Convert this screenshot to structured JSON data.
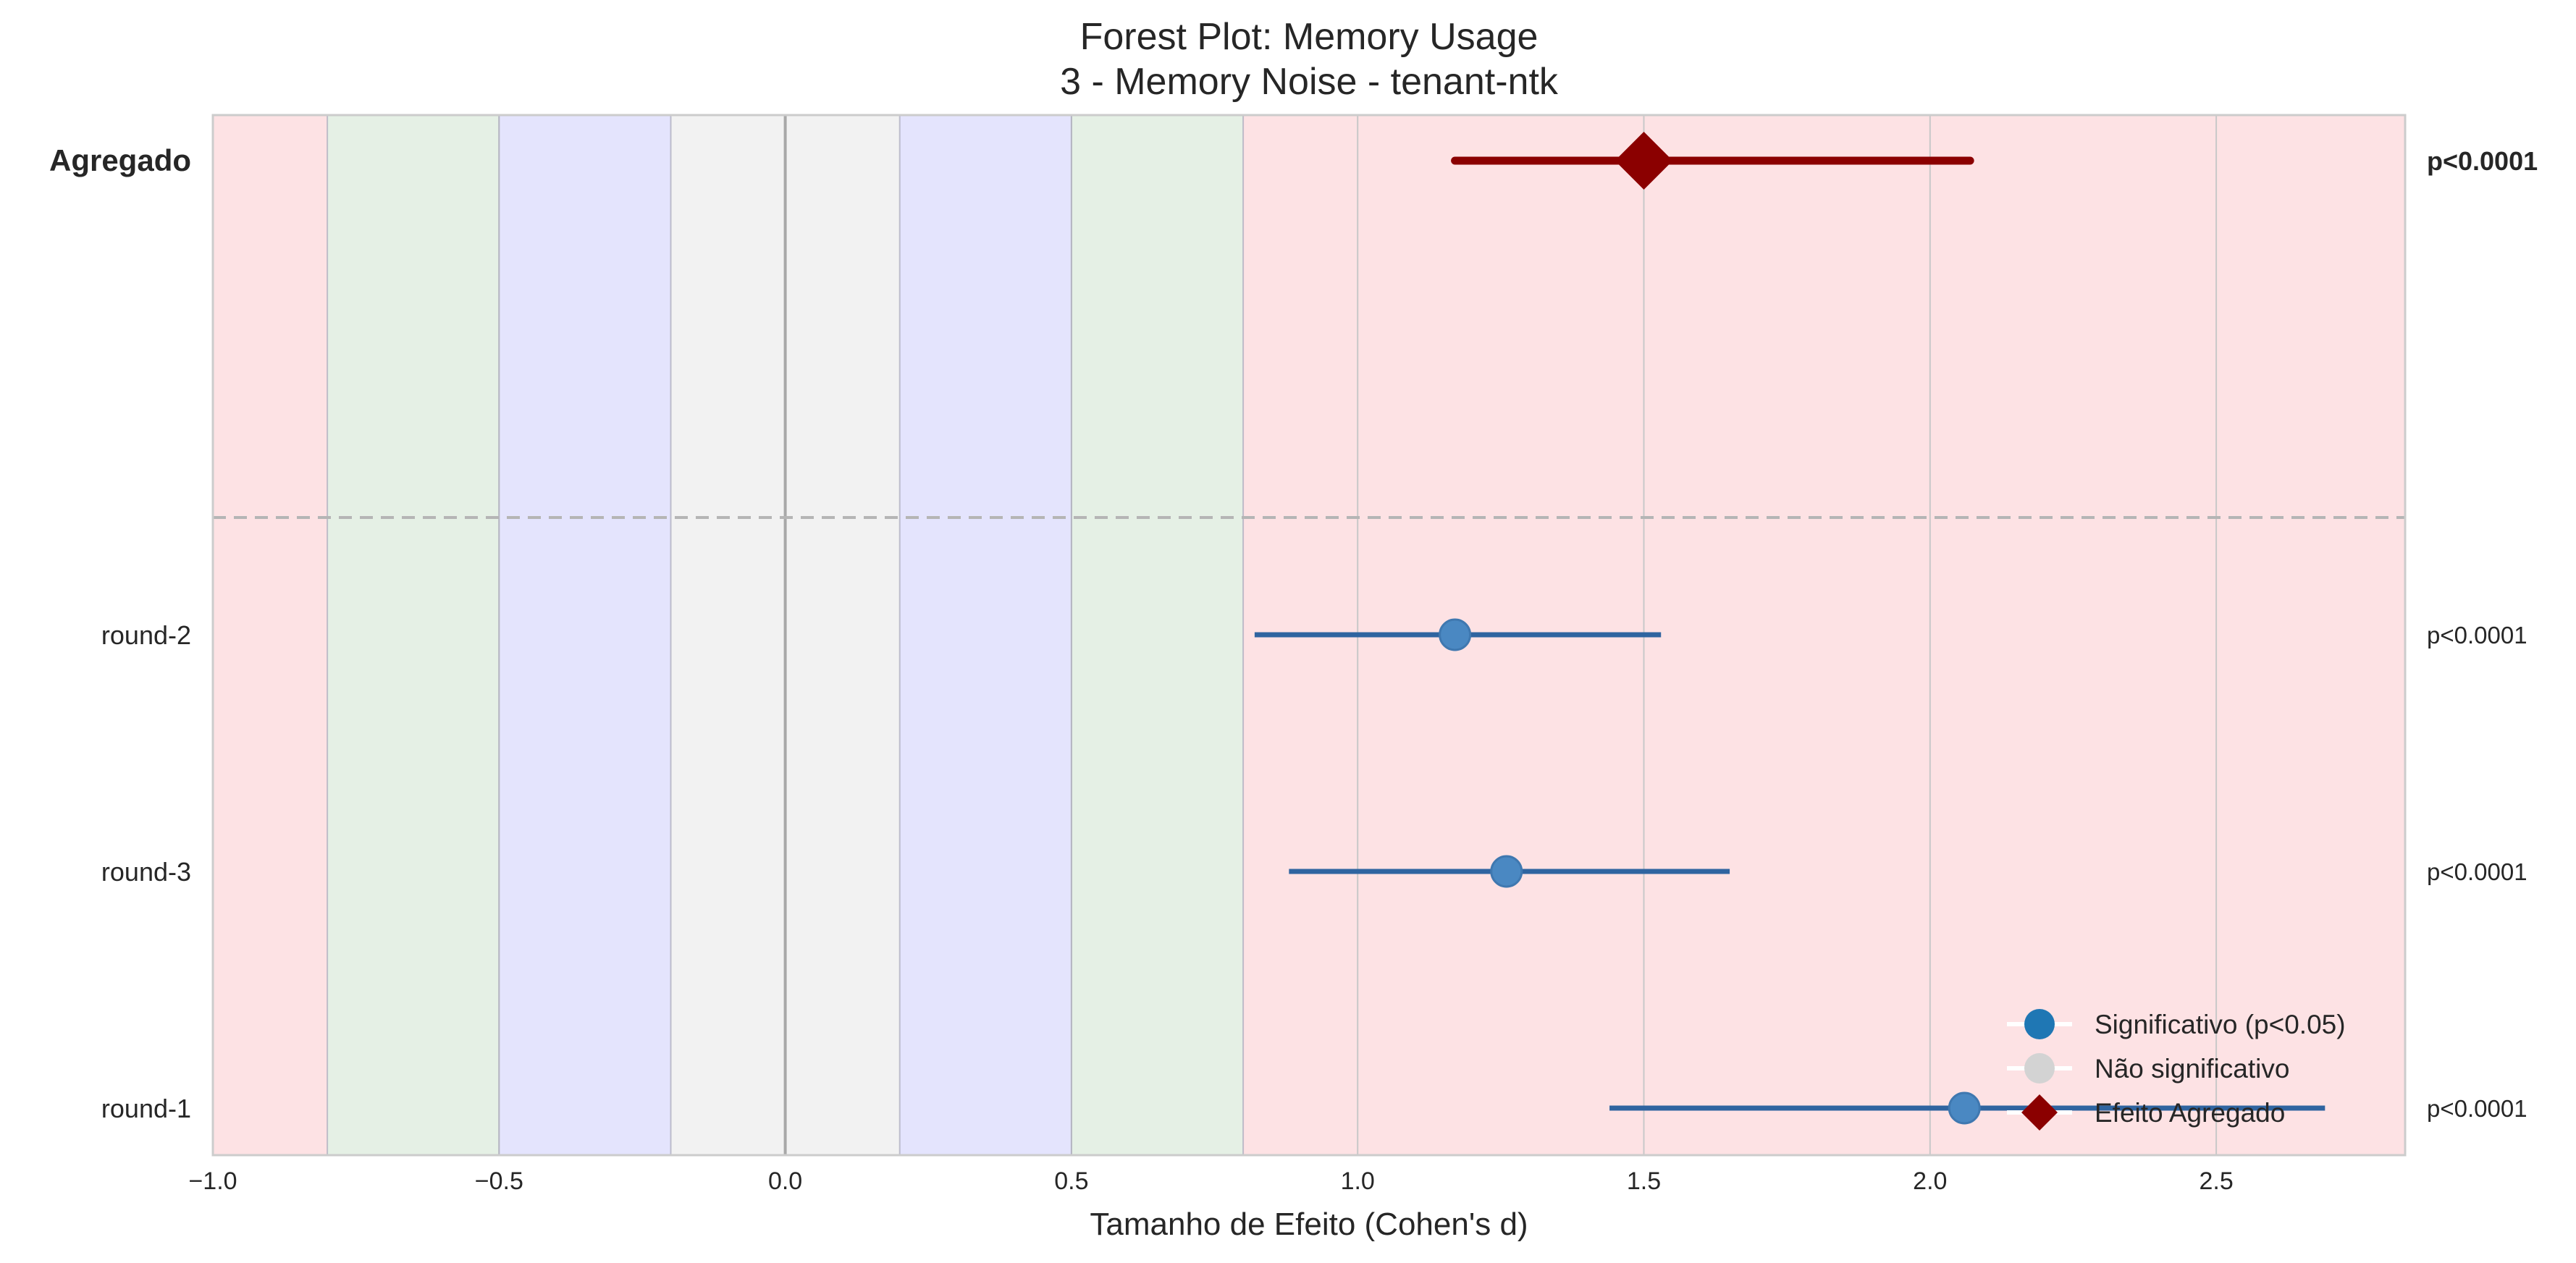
{
  "chart_data": {
    "type": "forest",
    "title_line1": "Forest Plot: Memory Usage",
    "title_line2": "3 - Memory Noise - tenant-ntk",
    "xlabel": "Tamanho de Efeito (Cohen's d)",
    "xlim": [
      -1.0,
      2.83
    ],
    "xticks": [
      {
        "value": -1.0,
        "label": "−1.0"
      },
      {
        "value": -0.5,
        "label": "−0.5"
      },
      {
        "value": 0.0,
        "label": "0.0"
      },
      {
        "value": 0.5,
        "label": "0.5"
      },
      {
        "value": 1.0,
        "label": "1.0"
      },
      {
        "value": 1.5,
        "label": "1.5"
      },
      {
        "value": 2.0,
        "label": "2.0"
      },
      {
        "value": 2.5,
        "label": "2.5"
      }
    ],
    "grid": true,
    "effect_bands": [
      {
        "from": -1.0,
        "to": -0.8,
        "color": "#fde2e4"
      },
      {
        "from": -0.8,
        "to": -0.5,
        "color": "#e5f0e5"
      },
      {
        "from": -0.5,
        "to": -0.2,
        "color": "#e4e4fd"
      },
      {
        "from": -0.2,
        "to": 0.2,
        "color": "#f2f2f2"
      },
      {
        "from": 0.2,
        "to": 0.5,
        "color": "#e4e4fd"
      },
      {
        "from": 0.5,
        "to": 0.8,
        "color": "#e5f0e5"
      },
      {
        "from": 0.8,
        "to": 2.83,
        "color": "#fde2e4"
      }
    ],
    "aggregate": {
      "label": "Agregado",
      "estimate": 1.5,
      "ci_low": 1.17,
      "ci_high": 2.07,
      "p_label": "p<0.0001"
    },
    "rounds": [
      {
        "label": "round-2",
        "estimate": 1.17,
        "ci_low": 0.82,
        "ci_high": 1.53,
        "p_label": "p<0.0001",
        "significant": true
      },
      {
        "label": "round-3",
        "estimate": 1.26,
        "ci_low": 0.88,
        "ci_high": 1.65,
        "p_label": "p<0.0001",
        "significant": true
      },
      {
        "label": "round-1",
        "estimate": 2.06,
        "ci_low": 1.44,
        "ci_high": 2.69,
        "p_label": "p<0.0001",
        "significant": true
      }
    ],
    "legend": {
      "position": "bottom-right",
      "items": [
        {
          "label": "Significativo (p<0.05)",
          "marker": "circle",
          "color": "#1f77b4"
        },
        {
          "label": "Não significativo",
          "marker": "circle",
          "color": "#d3d3d3"
        },
        {
          "label": "Efeito Agregado",
          "marker": "diamond",
          "color": "#8b0000"
        }
      ]
    },
    "colors": {
      "aggregate": "#8b0000",
      "significant_line": "#2f64a0",
      "significant_marker": "#4a88c2",
      "nonsignificant": "#d3d3d3"
    }
  }
}
